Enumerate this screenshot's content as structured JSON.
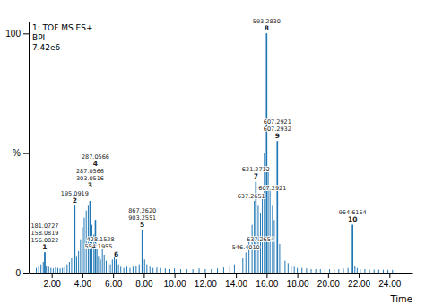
{
  "chart_data": {
    "type": "stem",
    "title": "1: TOF MS ES+\nBPI\n7.42e6",
    "x_label": "Time",
    "xlim": [
      0.5,
      25.5
    ],
    "xticks": [
      {
        "value": 2.0,
        "label": "2.00"
      },
      {
        "value": 4.0,
        "label": "4.00"
      },
      {
        "value": 6.0,
        "label": "6.00"
      },
      {
        "value": 8.0,
        "label": "8.00"
      },
      {
        "value": 10.0,
        "label": "10.00"
      },
      {
        "value": 12.0,
        "label": "12.00"
      },
      {
        "value": 14.0,
        "label": "14.00"
      },
      {
        "value": 16.0,
        "label": "16.00"
      },
      {
        "value": 18.0,
        "label": "18.00"
      },
      {
        "value": 20.0,
        "label": "20.00"
      },
      {
        "value": 22.0,
        "label": "22.00"
      },
      {
        "value": 24.0,
        "label": "24.00"
      }
    ],
    "ylim": [
      0,
      105
    ],
    "yticks": [
      0,
      {
        "value": 50,
        "label": "%"
      },
      100
    ],
    "x": [
      1.0,
      1.15,
      1.3,
      1.45,
      1.55,
      1.65,
      1.8,
      1.95,
      2.1,
      2.25,
      2.4,
      2.55,
      2.7,
      2.85,
      3.0,
      3.15,
      3.3,
      3.5,
      3.62,
      3.75,
      3.88,
      4.0,
      4.12,
      4.25,
      4.38,
      4.5,
      4.62,
      4.75,
      4.85,
      4.95,
      5.05,
      5.18,
      5.3,
      5.42,
      5.55,
      5.68,
      5.82,
      5.95,
      6.08,
      6.2,
      6.35,
      6.5,
      6.7,
      6.9,
      7.1,
      7.3,
      7.5,
      7.7,
      7.9,
      8.05,
      8.2,
      8.4,
      8.6,
      8.85,
      9.1,
      9.4,
      9.7,
      10.0,
      10.4,
      10.8,
      11.2,
      11.6,
      12.0,
      12.4,
      12.8,
      13.2,
      13.6,
      13.9,
      14.2,
      14.45,
      14.65,
      14.85,
      15.05,
      15.2,
      15.3,
      15.45,
      15.6,
      15.72,
      15.85,
      16.0,
      16.1,
      16.22,
      16.38,
      16.5,
      16.7,
      16.85,
      17.0,
      17.2,
      17.4,
      17.6,
      17.8,
      18.0,
      18.3,
      18.6,
      18.9,
      19.2,
      19.5,
      19.8,
      20.1,
      20.4,
      20.7,
      21.0,
      21.3,
      21.6,
      21.75,
      21.9,
      22.1,
      22.4,
      22.7,
      23.0,
      23.3,
      23.6,
      23.9,
      24.2
    ],
    "values": [
      2.0,
      3.0,
      3.5,
      4.5,
      8.5,
      3.0,
      2.5,
      2.0,
      1.8,
      2.2,
      2.0,
      1.8,
      2.0,
      2.5,
      3.5,
      4.5,
      6.0,
      28.0,
      7.0,
      9.0,
      14.0,
      19.0,
      23.0,
      26.0,
      28.0,
      30.0,
      20.0,
      16.0,
      22.0,
      10.0,
      7.0,
      5.5,
      10.0,
      7.5,
      5.0,
      4.0,
      3.5,
      5.5,
      7.5,
      5.5,
      3.5,
      2.5,
      2.0,
      2.5,
      2.0,
      2.5,
      3.0,
      3.5,
      18.0,
      5.5,
      3.5,
      2.5,
      2.0,
      2.2,
      2.0,
      1.8,
      1.5,
      1.8,
      1.5,
      1.5,
      1.5,
      1.8,
      1.5,
      1.5,
      1.8,
      2.2,
      3.0,
      3.5,
      4.5,
      6.0,
      8.5,
      13.0,
      20.0,
      30.0,
      38.0,
      28.0,
      25.0,
      32.0,
      50.0,
      100.0,
      42.0,
      35.0,
      28.0,
      22.0,
      55.0,
      12.0,
      8.0,
      5.0,
      4.0,
      3.0,
      2.5,
      2.0,
      2.0,
      1.8,
      1.5,
      1.5,
      1.5,
      1.5,
      1.5,
      1.5,
      1.5,
      1.8,
      2.0,
      20.0,
      3.0,
      2.0,
      1.5,
      1.5,
      1.3,
      1.3,
      1.3,
      1.2,
      1.2,
      1.2
    ],
    "peaks": [
      {
        "id": 1,
        "x": 1.55,
        "value": 8.5,
        "labels": [
          "156.0822",
          "158.0819",
          "181.0727"
        ]
      },
      {
        "id": 2,
        "x": 3.5,
        "value": 28.0,
        "labels": [
          "195.0919"
        ]
      },
      {
        "id": 3,
        "x": 4.5,
        "value": 30.0,
        "labels": [
          "303.0516",
          "287.0566"
        ]
      },
      {
        "id": 4,
        "x": 4.85,
        "value": 22.0,
        "labels": [
          "287.0566"
        ]
      },
      {
        "id": 5,
        "x": 7.9,
        "value": 18.0,
        "labels": [
          "903.2551",
          "867.2620"
        ]
      },
      {
        "id": 6,
        "x": 6.2,
        "value": 5.5,
        "labels": []
      },
      {
        "id": 7,
        "x": 15.3,
        "value": 38.0,
        "labels": [
          "621.2712"
        ]
      },
      {
        "id": 8,
        "x": 16.0,
        "value": 100.0,
        "labels": [
          "593.2830"
        ]
      },
      {
        "id": 9,
        "x": 16.7,
        "value": 55.0,
        "labels": [
          "607.2932",
          "607.2921"
        ]
      },
      {
        "id": 10,
        "x": 21.6,
        "value": 20.0,
        "labels": [
          "964.6154"
        ]
      }
    ],
    "annotations": [
      {
        "text": "554.1955",
        "x": 5.05,
        "y": 7.0
      },
      {
        "text": "428.1528",
        "x": 5.18,
        "y": 5.5
      },
      {
        "text": "546.4010",
        "x": 14.65,
        "y": 8.5
      },
      {
        "text": "637.2651",
        "x": 15.0,
        "y": 30.0
      },
      {
        "text": "637.2654",
        "x": 15.6,
        "y": 10.0
      },
      {
        "text": "607.2921",
        "x": 16.38,
        "y": 28.0
      }
    ]
  }
}
